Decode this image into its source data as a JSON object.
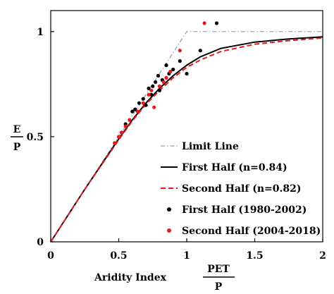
{
  "chart_data": {
    "type": "scatter",
    "x_axis": {
      "label": "Aridity Index",
      "fraction_numerator": "PET",
      "fraction_denominator": "P",
      "range": [
        0,
        2
      ],
      "ticks": [
        0,
        0.5,
        1,
        1.5,
        2
      ],
      "tick_labels": [
        "0",
        "0.5",
        "1",
        "1.5",
        "2"
      ]
    },
    "y_axis": {
      "fraction_numerator": "E",
      "fraction_denominator": "P",
      "range": [
        0,
        1.1
      ],
      "ticks": [
        0,
        0.5,
        1
      ],
      "tick_labels": [
        "0",
        "0.5",
        "1"
      ]
    },
    "series": [
      {
        "name": "Limit Line",
        "kind": "line",
        "style": "dashdot",
        "color": "#9a9aa8",
        "x": [
          0,
          1,
          2
        ],
        "y": [
          0,
          1,
          1
        ]
      },
      {
        "name": "First Half (n=0.84)",
        "kind": "line",
        "style": "solid",
        "color": "#000000",
        "x": [
          0,
          0.25,
          0.5,
          0.6,
          0.7,
          0.8,
          0.9,
          1.0,
          1.1,
          1.25,
          1.5,
          1.75,
          2.0
        ],
        "y": [
          0,
          0.25,
          0.49,
          0.58,
          0.66,
          0.73,
          0.79,
          0.84,
          0.88,
          0.92,
          0.95,
          0.965,
          0.975
        ]
      },
      {
        "name": "Second Half (n=0.82)",
        "kind": "line",
        "style": "dashed",
        "color": "#e41a1c",
        "x": [
          0,
          0.25,
          0.5,
          0.6,
          0.7,
          0.8,
          0.9,
          1.0,
          1.1,
          1.25,
          1.5,
          1.75,
          2.0
        ],
        "y": [
          0,
          0.25,
          0.485,
          0.575,
          0.655,
          0.72,
          0.78,
          0.83,
          0.865,
          0.905,
          0.94,
          0.957,
          0.97
        ]
      },
      {
        "name": "First Half (1980-2002)",
        "kind": "points",
        "color": "#000000",
        "x": [
          0.55,
          0.6,
          0.62,
          0.65,
          0.68,
          0.7,
          0.72,
          0.74,
          0.75,
          0.77,
          0.79,
          0.8,
          0.82,
          0.85,
          0.87,
          0.9,
          0.95,
          1.0,
          1.1,
          1.22
        ],
        "y": [
          0.56,
          0.62,
          0.63,
          0.66,
          0.68,
          0.65,
          0.73,
          0.7,
          0.74,
          0.76,
          0.79,
          0.72,
          0.77,
          0.84,
          0.8,
          0.82,
          0.86,
          0.8,
          0.91,
          1.04
        ]
      },
      {
        "name": "Second Half (2004-2018)",
        "kind": "points",
        "color": "#e41a1c",
        "x": [
          0.47,
          0.5,
          0.52,
          0.55,
          0.58,
          0.64,
          0.68,
          0.72,
          0.74,
          0.76,
          0.8,
          0.83,
          0.85,
          0.88,
          0.95,
          1.13
        ],
        "y": [
          0.47,
          0.5,
          0.52,
          0.55,
          0.58,
          0.62,
          0.66,
          0.7,
          0.72,
          0.64,
          0.74,
          0.76,
          0.78,
          0.81,
          0.91,
          1.04
        ]
      }
    ],
    "legend": {
      "placement": "bottom-right",
      "entries": [
        "Limit Line",
        "First Half (n=0.84)",
        "Second Half (n=0.82)",
        "First Half (1980-2002)",
        "Second Half (2004-2018)"
      ]
    }
  }
}
